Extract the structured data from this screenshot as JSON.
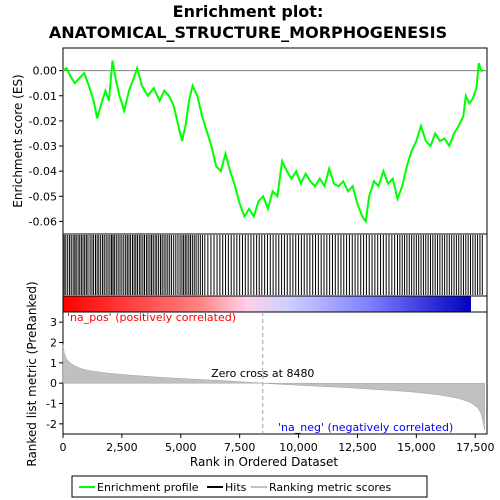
{
  "chart_data": {
    "type": "line",
    "title_line1": "Enrichment plot:",
    "title_line2": "ANATOMICAL_STRUCTURE_MORPHOGENESIS",
    "es_ylabel": "Enrichment score (ES)",
    "metric_ylabel": "Ranked list metric (PreRanked)",
    "xlabel": "Rank in Ordered Dataset",
    "xlim": [
      0,
      18000
    ],
    "es_ylim": [
      -0.065,
      0.009
    ],
    "metric_ylim": [
      -2.5,
      3.5
    ],
    "x_ticks": [
      "0",
      "2,500",
      "5,000",
      "7,500",
      "10,000",
      "12,500",
      "15,000",
      "17,500"
    ],
    "x_tick_values": [
      0,
      2500,
      5000,
      7500,
      10000,
      12500,
      15000,
      17500
    ],
    "es_ticks": [
      "0.00",
      "-0.01",
      "-0.02",
      "-0.03",
      "-0.04",
      "-0.05",
      "-0.06"
    ],
    "es_tick_values": [
      0.0,
      -0.01,
      -0.02,
      -0.03,
      -0.04,
      -0.05,
      -0.06
    ],
    "metric_ticks": [
      "3",
      "2",
      "1",
      "0",
      "-1",
      "-2"
    ],
    "metric_tick_values": [
      3,
      2,
      1,
      0,
      -1,
      -2
    ],
    "pos_label": "'na_pos' (positively correlated)",
    "neg_label": "'na_neg' (negatively correlated)",
    "zero_cross_label": "Zero cross at 8480",
    "zero_cross": 8480,
    "enrichment_profile": [
      [
        0,
        0.0
      ],
      [
        150,
        0.001
      ],
      [
        300,
        -0.002
      ],
      [
        500,
        -0.005
      ],
      [
        700,
        -0.003
      ],
      [
        900,
        -0.001
      ],
      [
        1100,
        -0.006
      ],
      [
        1300,
        -0.012
      ],
      [
        1450,
        -0.019
      ],
      [
        1600,
        -0.014
      ],
      [
        1800,
        -0.008
      ],
      [
        1950,
        -0.012
      ],
      [
        2100,
        0.004
      ],
      [
        2250,
        -0.004
      ],
      [
        2400,
        -0.01
      ],
      [
        2600,
        -0.016
      ],
      [
        2800,
        -0.008
      ],
      [
        3000,
        -0.003
      ],
      [
        3150,
        0.001
      ],
      [
        3350,
        -0.006
      ],
      [
        3600,
        -0.01
      ],
      [
        3850,
        -0.007
      ],
      [
        4100,
        -0.012
      ],
      [
        4300,
        -0.008
      ],
      [
        4500,
        -0.01
      ],
      [
        4700,
        -0.014
      ],
      [
        4900,
        -0.022
      ],
      [
        5050,
        -0.028
      ],
      [
        5200,
        -0.022
      ],
      [
        5350,
        -0.012
      ],
      [
        5500,
        -0.006
      ],
      [
        5700,
        -0.01
      ],
      [
        5900,
        -0.018
      ],
      [
        6100,
        -0.024
      ],
      [
        6300,
        -0.03
      ],
      [
        6500,
        -0.038
      ],
      [
        6700,
        -0.04
      ],
      [
        6900,
        -0.033
      ],
      [
        7100,
        -0.04
      ],
      [
        7300,
        -0.046
      ],
      [
        7500,
        -0.053
      ],
      [
        7700,
        -0.058
      ],
      [
        7900,
        -0.055
      ],
      [
        8100,
        -0.058
      ],
      [
        8300,
        -0.052
      ],
      [
        8500,
        -0.05
      ],
      [
        8700,
        -0.055
      ],
      [
        8900,
        -0.048
      ],
      [
        9100,
        -0.05
      ],
      [
        9300,
        -0.036
      ],
      [
        9500,
        -0.04
      ],
      [
        9700,
        -0.043
      ],
      [
        9900,
        -0.04
      ],
      [
        10100,
        -0.045
      ],
      [
        10300,
        -0.041
      ],
      [
        10500,
        -0.044
      ],
      [
        10700,
        -0.046
      ],
      [
        10900,
        -0.043
      ],
      [
        11100,
        -0.046
      ],
      [
        11300,
        -0.039
      ],
      [
        11500,
        -0.045
      ],
      [
        11700,
        -0.046
      ],
      [
        11900,
        -0.044
      ],
      [
        12100,
        -0.048
      ],
      [
        12300,
        -0.046
      ],
      [
        12500,
        -0.053
      ],
      [
        12700,
        -0.058
      ],
      [
        12850,
        -0.06
      ],
      [
        13000,
        -0.05
      ],
      [
        13200,
        -0.044
      ],
      [
        13400,
        -0.046
      ],
      [
        13600,
        -0.04
      ],
      [
        13800,
        -0.045
      ],
      [
        14000,
        -0.043
      ],
      [
        14200,
        -0.051
      ],
      [
        14400,
        -0.046
      ],
      [
        14600,
        -0.038
      ],
      [
        14800,
        -0.032
      ],
      [
        15000,
        -0.028
      ],
      [
        15200,
        -0.022
      ],
      [
        15400,
        -0.028
      ],
      [
        15600,
        -0.03
      ],
      [
        15800,
        -0.025
      ],
      [
        16000,
        -0.028
      ],
      [
        16200,
        -0.027
      ],
      [
        16400,
        -0.03
      ],
      [
        16600,
        -0.025
      ],
      [
        16800,
        -0.022
      ],
      [
        17000,
        -0.018
      ],
      [
        17100,
        -0.01
      ],
      [
        17250,
        -0.013
      ],
      [
        17400,
        -0.011
      ],
      [
        17550,
        -0.007
      ],
      [
        17650,
        0.003
      ],
      [
        17750,
        0.0
      ],
      [
        17850,
        0.0
      ]
    ],
    "hit_ranks": [
      50,
      120,
      200,
      280,
      350,
      430,
      500,
      560,
      640,
      710,
      780,
      850,
      920,
      990,
      1060,
      1150,
      1230,
      1300,
      1380,
      1450,
      1520,
      1600,
      1680,
      1750,
      1830,
      1910,
      1990,
      2060,
      2120,
      2180,
      2260,
      2340,
      2420,
      2500,
      2580,
      2660,
      2730,
      2800,
      2870,
      2950,
      3020,
      3090,
      3160,
      3240,
      3310,
      3390,
      3460,
      3540,
      3610,
      3690,
      3760,
      3830,
      3910,
      3980,
      4060,
      4140,
      4210,
      4290,
      4370,
      4450,
      4530,
      4610,
      4700,
      4790,
      4880,
      4970,
      5050,
      5120,
      5190,
      5260,
      5340,
      5410,
      5490,
      5570,
      5650,
      5740,
      5830,
      5920,
      6020,
      6150,
      6280,
      6410,
      6540,
      6660,
      6780,
      6900,
      7020,
      7140,
      7260,
      7380,
      7500,
      7620,
      7740,
      7860,
      7980,
      8100,
      8220,
      8330,
      8440,
      8560,
      8680,
      8800,
      8920,
      9040,
      9160,
      9280,
      9400,
      9520,
      9640,
      9760,
      9880,
      10000,
      10120,
      10240,
      10360,
      10480,
      10600,
      10720,
      10840,
      10960,
      11080,
      11200,
      11320,
      11440,
      11560,
      11680,
      11800,
      11920,
      12040,
      12160,
      12280,
      12400,
      12520,
      12640,
      12760,
      12880,
      13000,
      13120,
      13240,
      13360,
      13480,
      13600,
      13720,
      13840,
      13960,
      14080,
      14200,
      14300,
      14400,
      14500,
      14600,
      14700,
      14800,
      14900,
      15000,
      15100,
      15200,
      15300,
      15400,
      15500,
      15600,
      15700,
      15800,
      15900,
      16000,
      16100,
      16200,
      16300,
      16400,
      16500,
      16600,
      16700,
      16800,
      16900,
      17000,
      17100,
      17200,
      17300,
      17400,
      17500,
      17600,
      17700,
      17800
    ],
    "ranked_metric": [
      [
        0,
        1.9
      ],
      [
        50,
        1.5
      ],
      [
        150,
        1.2
      ],
      [
        300,
        1.0
      ],
      [
        500,
        0.85
      ],
      [
        800,
        0.7
      ],
      [
        1200,
        0.6
      ],
      [
        2000,
        0.48
      ],
      [
        3000,
        0.38
      ],
      [
        4000,
        0.3
      ],
      [
        5000,
        0.23
      ],
      [
        6000,
        0.17
      ],
      [
        7000,
        0.11
      ],
      [
        8000,
        0.04
      ],
      [
        8480,
        0.0
      ],
      [
        9000,
        -0.04
      ],
      [
        10000,
        -0.1
      ],
      [
        11000,
        -0.16
      ],
      [
        12000,
        -0.22
      ],
      [
        13000,
        -0.29
      ],
      [
        14000,
        -0.36
      ],
      [
        15000,
        -0.45
      ],
      [
        16000,
        -0.58
      ],
      [
        16800,
        -0.75
      ],
      [
        17300,
        -0.95
      ],
      [
        17600,
        -1.2
      ],
      [
        17750,
        -1.5
      ],
      [
        17850,
        -2.0
      ],
      [
        17900,
        -2.3
      ]
    ],
    "legend": [
      "Enrichment profile",
      "Hits",
      "Ranking metric scores"
    ],
    "colors": {
      "profile": "#00ff00",
      "hits": "#000000",
      "metric_fill": "#c0c0c0",
      "zero_line": "#a0a0a0",
      "pos_text": "#ff0000",
      "neg_text": "#0000ff",
      "bar_pos": "#ff0000",
      "bar_neg": "#0000ff"
    }
  }
}
